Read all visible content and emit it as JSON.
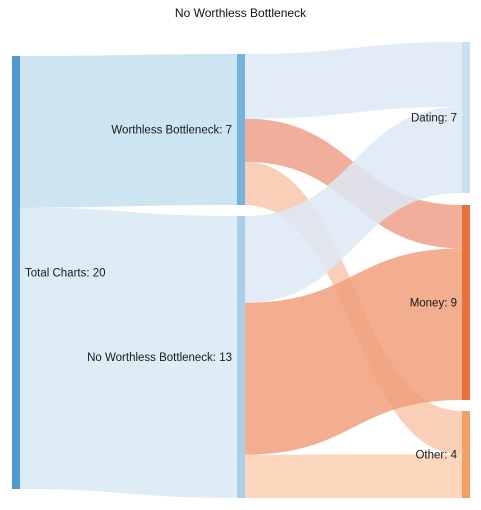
{
  "title": "No Worthless Bottleneck",
  "chart_data": {
    "type": "sankey",
    "title": "No Worthless Bottleneck",
    "nodes": [
      {
        "id": "total",
        "label": "Total Charts: 20",
        "value": 20,
        "color": "#4f9bd1"
      },
      {
        "id": "wb",
        "label": "Worthless Bottleneck: 7",
        "value": 7,
        "color": "#74b3df"
      },
      {
        "id": "nwb",
        "label": "No Worthless Bottleneck: 13",
        "value": 13,
        "color": "#a9cfe9"
      },
      {
        "id": "dating",
        "label": "Dating: 7",
        "value": 7,
        "color": "#c9dff2"
      },
      {
        "id": "money",
        "label": "Money: 9",
        "value": 9,
        "color": "#e8703a"
      },
      {
        "id": "other",
        "label": "Other: 4",
        "value": 4,
        "color": "#f5a063"
      }
    ],
    "links": [
      {
        "source": "total",
        "target": "wb",
        "value": 7,
        "color": "#c4dfef"
      },
      {
        "source": "total",
        "target": "nwb",
        "value": 13,
        "color": "#d8e9f4"
      },
      {
        "source": "wb",
        "target": "dating",
        "value": 3,
        "color": "#dde9f6"
      },
      {
        "source": "wb",
        "target": "money",
        "value": 2,
        "color": "#eea088"
      },
      {
        "source": "wb",
        "target": "other",
        "value": 2,
        "color": "#f8c7ab"
      },
      {
        "source": "nwb",
        "target": "dating",
        "value": 4,
        "color": "#dde9f6"
      },
      {
        "source": "nwb",
        "target": "money",
        "value": 7,
        "color": "#f0a07a"
      },
      {
        "source": "nwb",
        "target": "other",
        "value": 2,
        "color": "#fbd0b3"
      }
    ]
  }
}
